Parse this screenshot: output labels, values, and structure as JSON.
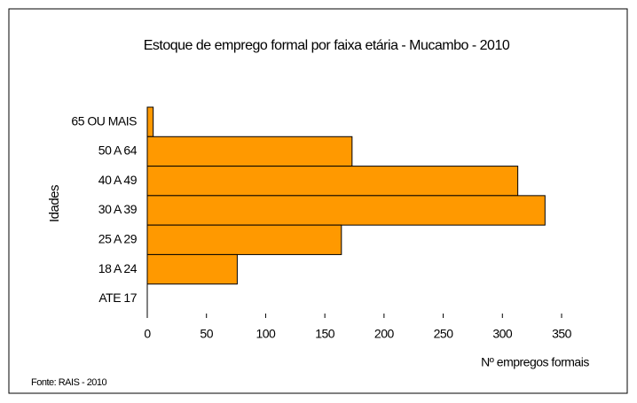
{
  "chart_data": {
    "type": "hbar",
    "title": "Estoque de emprego formal por faixa etária - Mucambo - 2010",
    "categories": [
      "65 OU MAIS",
      "50 A 64",
      "40 A 49",
      "30 A 39",
      "25 A 29",
      "18 A 24",
      "ATE 17"
    ],
    "values": [
      5,
      173,
      313,
      336,
      164,
      76,
      0
    ],
    "color": "#ff9900",
    "xlim": [
      0,
      350
    ],
    "xticks": [
      0,
      50,
      100,
      150,
      200,
      250,
      300,
      350
    ],
    "y_label": "Idades",
    "x_label": "Nº empregos formais",
    "source": "Fonte: RAIS - 2010",
    "grid": false
  }
}
